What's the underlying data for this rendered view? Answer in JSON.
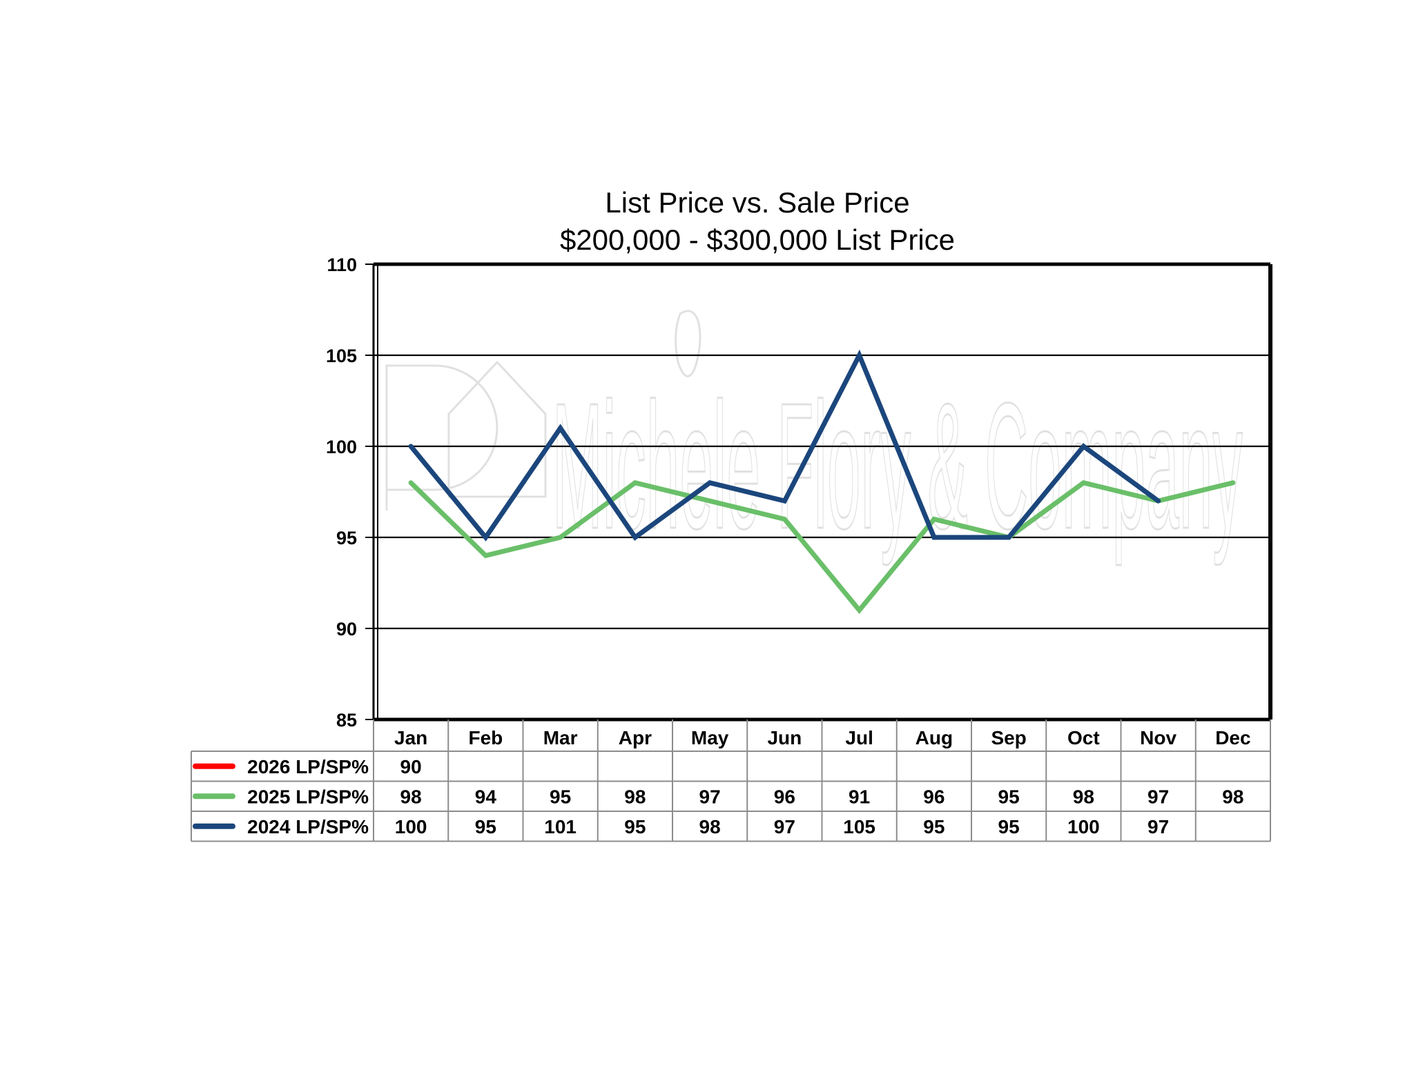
{
  "chart_data": {
    "type": "line",
    "title": "List Price vs. Sale Price",
    "subtitle": "$200,000 - $300,000 List Price",
    "categories": [
      "Jan",
      "Feb",
      "Mar",
      "Apr",
      "May",
      "Jun",
      "Jul",
      "Aug",
      "Sep",
      "Oct",
      "Nov",
      "Dec"
    ],
    "ylim": [
      85,
      110
    ],
    "yticks": [
      85,
      90,
      95,
      100,
      105,
      110
    ],
    "grid": true,
    "legend_position": "data-table",
    "watermark": "Michele Flory & Company",
    "series": [
      {
        "name": "2026 LP/SP%",
        "color": "#ff0000",
        "values": [
          90,
          null,
          null,
          null,
          null,
          null,
          null,
          null,
          null,
          null,
          null,
          null
        ],
        "show_line": false
      },
      {
        "name": "2025 LP/SP%",
        "color": "#6abf69",
        "values": [
          98,
          94,
          95,
          98,
          97,
          96,
          91,
          96,
          95,
          98,
          97,
          98
        ],
        "show_line": true
      },
      {
        "name": "2024 LP/SP%",
        "color": "#1b467c",
        "values": [
          100,
          95,
          101,
          95,
          98,
          97,
          105,
          95,
          95,
          100,
          97,
          null
        ],
        "show_line": true
      }
    ]
  }
}
